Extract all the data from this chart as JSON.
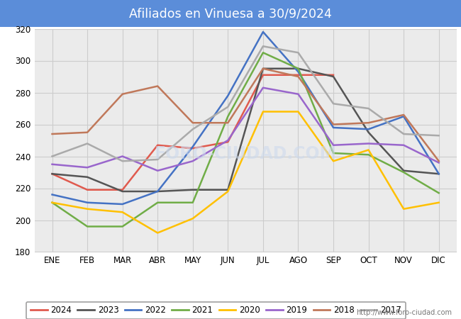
{
  "title": "Afiliados en Vinuesa a 30/9/2024",
  "title_bg_color": "#5b8dd9",
  "title_text_color": "white",
  "months": [
    "ENE",
    "FEB",
    "MAR",
    "ABR",
    "MAY",
    "JUN",
    "JUL",
    "AGO",
    "SEP",
    "OCT",
    "NOV",
    "DIC"
  ],
  "ylim": [
    180,
    320
  ],
  "yticks": [
    180,
    200,
    220,
    240,
    260,
    280,
    300,
    320
  ],
  "series": {
    "2024": {
      "color": "#e05a4e",
      "linewidth": 1.8,
      "values": [
        229,
        219,
        219,
        247,
        245,
        249,
        291,
        291,
        291,
        null,
        null,
        null
      ]
    },
    "2023": {
      "color": "#555555",
      "linewidth": 1.8,
      "values": [
        229,
        227,
        218,
        218,
        219,
        219,
        295,
        295,
        290,
        255,
        231,
        229
      ]
    },
    "2022": {
      "color": "#4472c4",
      "linewidth": 1.8,
      "values": [
        216,
        211,
        210,
        218,
        246,
        278,
        318,
        293,
        258,
        257,
        265,
        229
      ]
    },
    "2021": {
      "color": "#70ad47",
      "linewidth": 1.8,
      "values": [
        211,
        196,
        196,
        211,
        211,
        265,
        305,
        295,
        242,
        241,
        230,
        217
      ]
    },
    "2020": {
      "color": "#ffc000",
      "linewidth": 1.8,
      "values": [
        211,
        207,
        205,
        192,
        201,
        218,
        268,
        268,
        237,
        244,
        207,
        211
      ]
    },
    "2019": {
      "color": "#9966cc",
      "linewidth": 1.8,
      "values": [
        235,
        233,
        240,
        231,
        237,
        250,
        283,
        279,
        247,
        248,
        247,
        236
      ]
    },
    "2018": {
      "color": "#c0785a",
      "linewidth": 1.8,
      "values": [
        254,
        255,
        279,
        284,
        261,
        261,
        295,
        290,
        260,
        261,
        266,
        237
      ]
    },
    "2017": {
      "color": "#aaaaaa",
      "linewidth": 1.8,
      "values": [
        240,
        248,
        237,
        238,
        257,
        271,
        309,
        305,
        273,
        270,
        254,
        253
      ]
    }
  },
  "legend_order": [
    "2024",
    "2023",
    "2022",
    "2021",
    "2020",
    "2019",
    "2018",
    "2017"
  ],
  "footer_text": "http://www.foro-ciudad.com",
  "watermark_text": "FORO-CIUDAD.COM",
  "grid_color": "#cccccc",
  "plot_bg_color": "#ebebeb"
}
